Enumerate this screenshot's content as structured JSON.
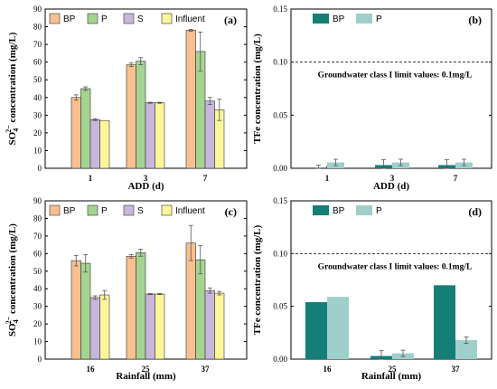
{
  "chart_data": [
    {
      "panel": "(a)",
      "type": "bar",
      "categories": [
        "1",
        "3",
        "7"
      ],
      "xlabel": "ADD (d)",
      "ylabel": "SO4 2− concentration (mg/L)",
      "ylabel_parts": {
        "pre": "SO",
        "sub": "4",
        "sup": "2−",
        "post": " concentration (mg/L)"
      },
      "ylim": [
        0,
        90
      ],
      "yticks": [
        "0",
        "10",
        "20",
        "30",
        "40",
        "50",
        "60",
        "70",
        "80",
        "90"
      ],
      "legend_position": "top-left",
      "series": [
        {
          "name": "BP",
          "color": "#f9c08f",
          "values": [
            40,
            58.5,
            78
          ],
          "errors": [
            1.5,
            1,
            0.5
          ]
        },
        {
          "name": "P",
          "color": "#a5d490",
          "values": [
            45,
            60.5,
            66
          ],
          "errors": [
            1,
            2,
            11
          ]
        },
        {
          "name": "S",
          "color": "#c9b6de",
          "values": [
            27.5,
            37,
            38
          ],
          "errors": [
            0.5,
            0.3,
            2
          ]
        },
        {
          "name": "Influent",
          "color": "#fbf69a",
          "values": [
            27,
            37,
            33
          ],
          "errors": [
            0,
            0.3,
            6
          ]
        }
      ]
    },
    {
      "panel": "(b)",
      "type": "bar",
      "categories": [
        "1",
        "3",
        "7"
      ],
      "xlabel": "ADD (d)",
      "ylabel": "TFe concentration (mg/L)",
      "ylim": [
        0,
        0.15
      ],
      "yticks": [
        "0.00",
        "0.05",
        "0.10",
        "0.15"
      ],
      "legend_position": "top-left",
      "reference_line": {
        "value": 0.1,
        "label": "Groundwater class I limit values: 0.1mg/L"
      },
      "series": [
        {
          "name": "BP",
          "color": "#137f77",
          "values": [
            0,
            0.003,
            0.003
          ],
          "errors": [
            0.003,
            0.005,
            0.005
          ]
        },
        {
          "name": "P",
          "color": "#9fcfcb",
          "values": [
            0.0055,
            0.0055,
            0.0055
          ],
          "errors": [
            0.003,
            0.003,
            0.003
          ]
        }
      ]
    },
    {
      "panel": "(c)",
      "type": "bar",
      "categories": [
        "16",
        "25",
        "37"
      ],
      "xlabel": "Rainfall (mm)",
      "ylabel": "SO4 2− concentration (mg/L)",
      "ylabel_parts": {
        "pre": "SO",
        "sub": "4",
        "sup": "2−",
        "post": " concentration (mg/L)"
      },
      "ylim": [
        0,
        90
      ],
      "yticks": [
        "0",
        "10",
        "20",
        "30",
        "40",
        "50",
        "60",
        "70",
        "80",
        "90"
      ],
      "legend_position": "top-left",
      "series": [
        {
          "name": "BP",
          "color": "#f9c08f",
          "values": [
            56,
            58.5,
            66
          ],
          "errors": [
            3,
            1,
            10
          ]
        },
        {
          "name": "P",
          "color": "#a5d490",
          "values": [
            54.5,
            60.5,
            56.5
          ],
          "errors": [
            5,
            2,
            8
          ]
        },
        {
          "name": "S",
          "color": "#c9b6de",
          "values": [
            35,
            37,
            39
          ],
          "errors": [
            1,
            0.3,
            1.5
          ]
        },
        {
          "name": "Influent",
          "color": "#fbf69a",
          "values": [
            36.5,
            37,
            37.5
          ],
          "errors": [
            2.5,
            0.3,
            1
          ]
        }
      ]
    },
    {
      "panel": "(d)",
      "type": "bar",
      "categories": [
        "16",
        "25",
        "37"
      ],
      "xlabel": "Rainfall (mm)",
      "ylabel": "TFe concentration (mg/L)",
      "ylim": [
        0,
        0.15
      ],
      "yticks": [
        "0.00",
        "0.05",
        "0.10",
        "0.15"
      ],
      "legend_position": "top-left",
      "reference_line": {
        "value": 0.1,
        "label": "Groundwater class I limit values: 0.1mg/L"
      },
      "series": [
        {
          "name": "BP",
          "color": "#137f77",
          "values": [
            0.054,
            0.003,
            0.07
          ],
          "errors": [
            0,
            0.005,
            0
          ]
        },
        {
          "name": "P",
          "color": "#9fcfcb",
          "values": [
            0.059,
            0.0055,
            0.018
          ],
          "errors": [
            0,
            0.003,
            0.003
          ]
        }
      ]
    }
  ]
}
